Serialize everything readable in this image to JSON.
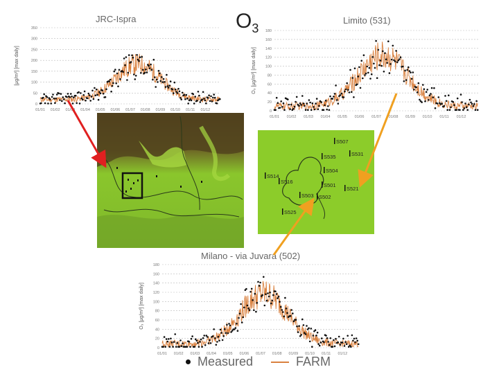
{
  "heading": {
    "main": "O",
    "sub": "3"
  },
  "legend": {
    "measured": "Measured",
    "farm": "FARM"
  },
  "colors": {
    "farm": "#d9803e",
    "measured": "#111111",
    "arrow_red": "#e02020",
    "arrow_orange": "#f0a020",
    "map_green": "#8ccc2a"
  },
  "map": {
    "stations": [
      "507",
      "531",
      "535",
      "504",
      "516",
      "514",
      "501",
      "503",
      "502",
      "521",
      "525"
    ]
  },
  "chart_data": [
    {
      "type": "line",
      "title": "JRC-Ispra",
      "ylabel": "[µg/m³] [max daily]",
      "ylim": [
        0,
        350
      ],
      "yticks": [
        "350",
        "300",
        "250",
        "200",
        "150",
        "100",
        "50",
        "0"
      ],
      "xticks": [
        "01/01",
        "01/02",
        "01/03",
        "01/04",
        "01/05",
        "01/06",
        "01/07",
        "01/08",
        "01/09",
        "01/10",
        "01/11",
        "01/12"
      ],
      "peak_month": 6.5,
      "peak_value": 235,
      "base_value": 20,
      "series": [
        {
          "name": "Measured"
        },
        {
          "name": "FARM"
        }
      ]
    },
    {
      "type": "line",
      "title": "Limito (531)",
      "ylabel": "O₃ [µg/m³] [max daily]",
      "ylim": [
        0,
        180
      ],
      "yticks": [
        "180",
        "160",
        "140",
        "120",
        "100",
        "80",
        "60",
        "40",
        "20",
        "0"
      ],
      "xticks": [
        "01/01",
        "01/02",
        "01/03",
        "01/04",
        "01/05",
        "01/06",
        "01/07",
        "01/08",
        "01/09",
        "01/10",
        "01/11",
        "01/12"
      ],
      "peak_month": 6.4,
      "peak_value": 160,
      "base_value": 10,
      "series": [
        {
          "name": "Measured"
        },
        {
          "name": "FARM"
        }
      ]
    },
    {
      "type": "line",
      "title": "Milano - via Juvara (502)",
      "ylabel": "O₃ [µg/m³] [max daily]",
      "ylim": [
        0,
        180
      ],
      "yticks": [
        "180",
        "160",
        "140",
        "120",
        "100",
        "80",
        "60",
        "40",
        "20",
        "0"
      ],
      "xticks": [
        "01/01",
        "01/02",
        "01/03",
        "01/04",
        "01/05",
        "01/06",
        "01/07",
        "01/08",
        "01/09",
        "01/10",
        "01/11",
        "01/12"
      ],
      "peak_month": 6.2,
      "peak_value": 150,
      "base_value": 8,
      "series": [
        {
          "name": "Measured"
        },
        {
          "name": "FARM"
        }
      ]
    }
  ]
}
